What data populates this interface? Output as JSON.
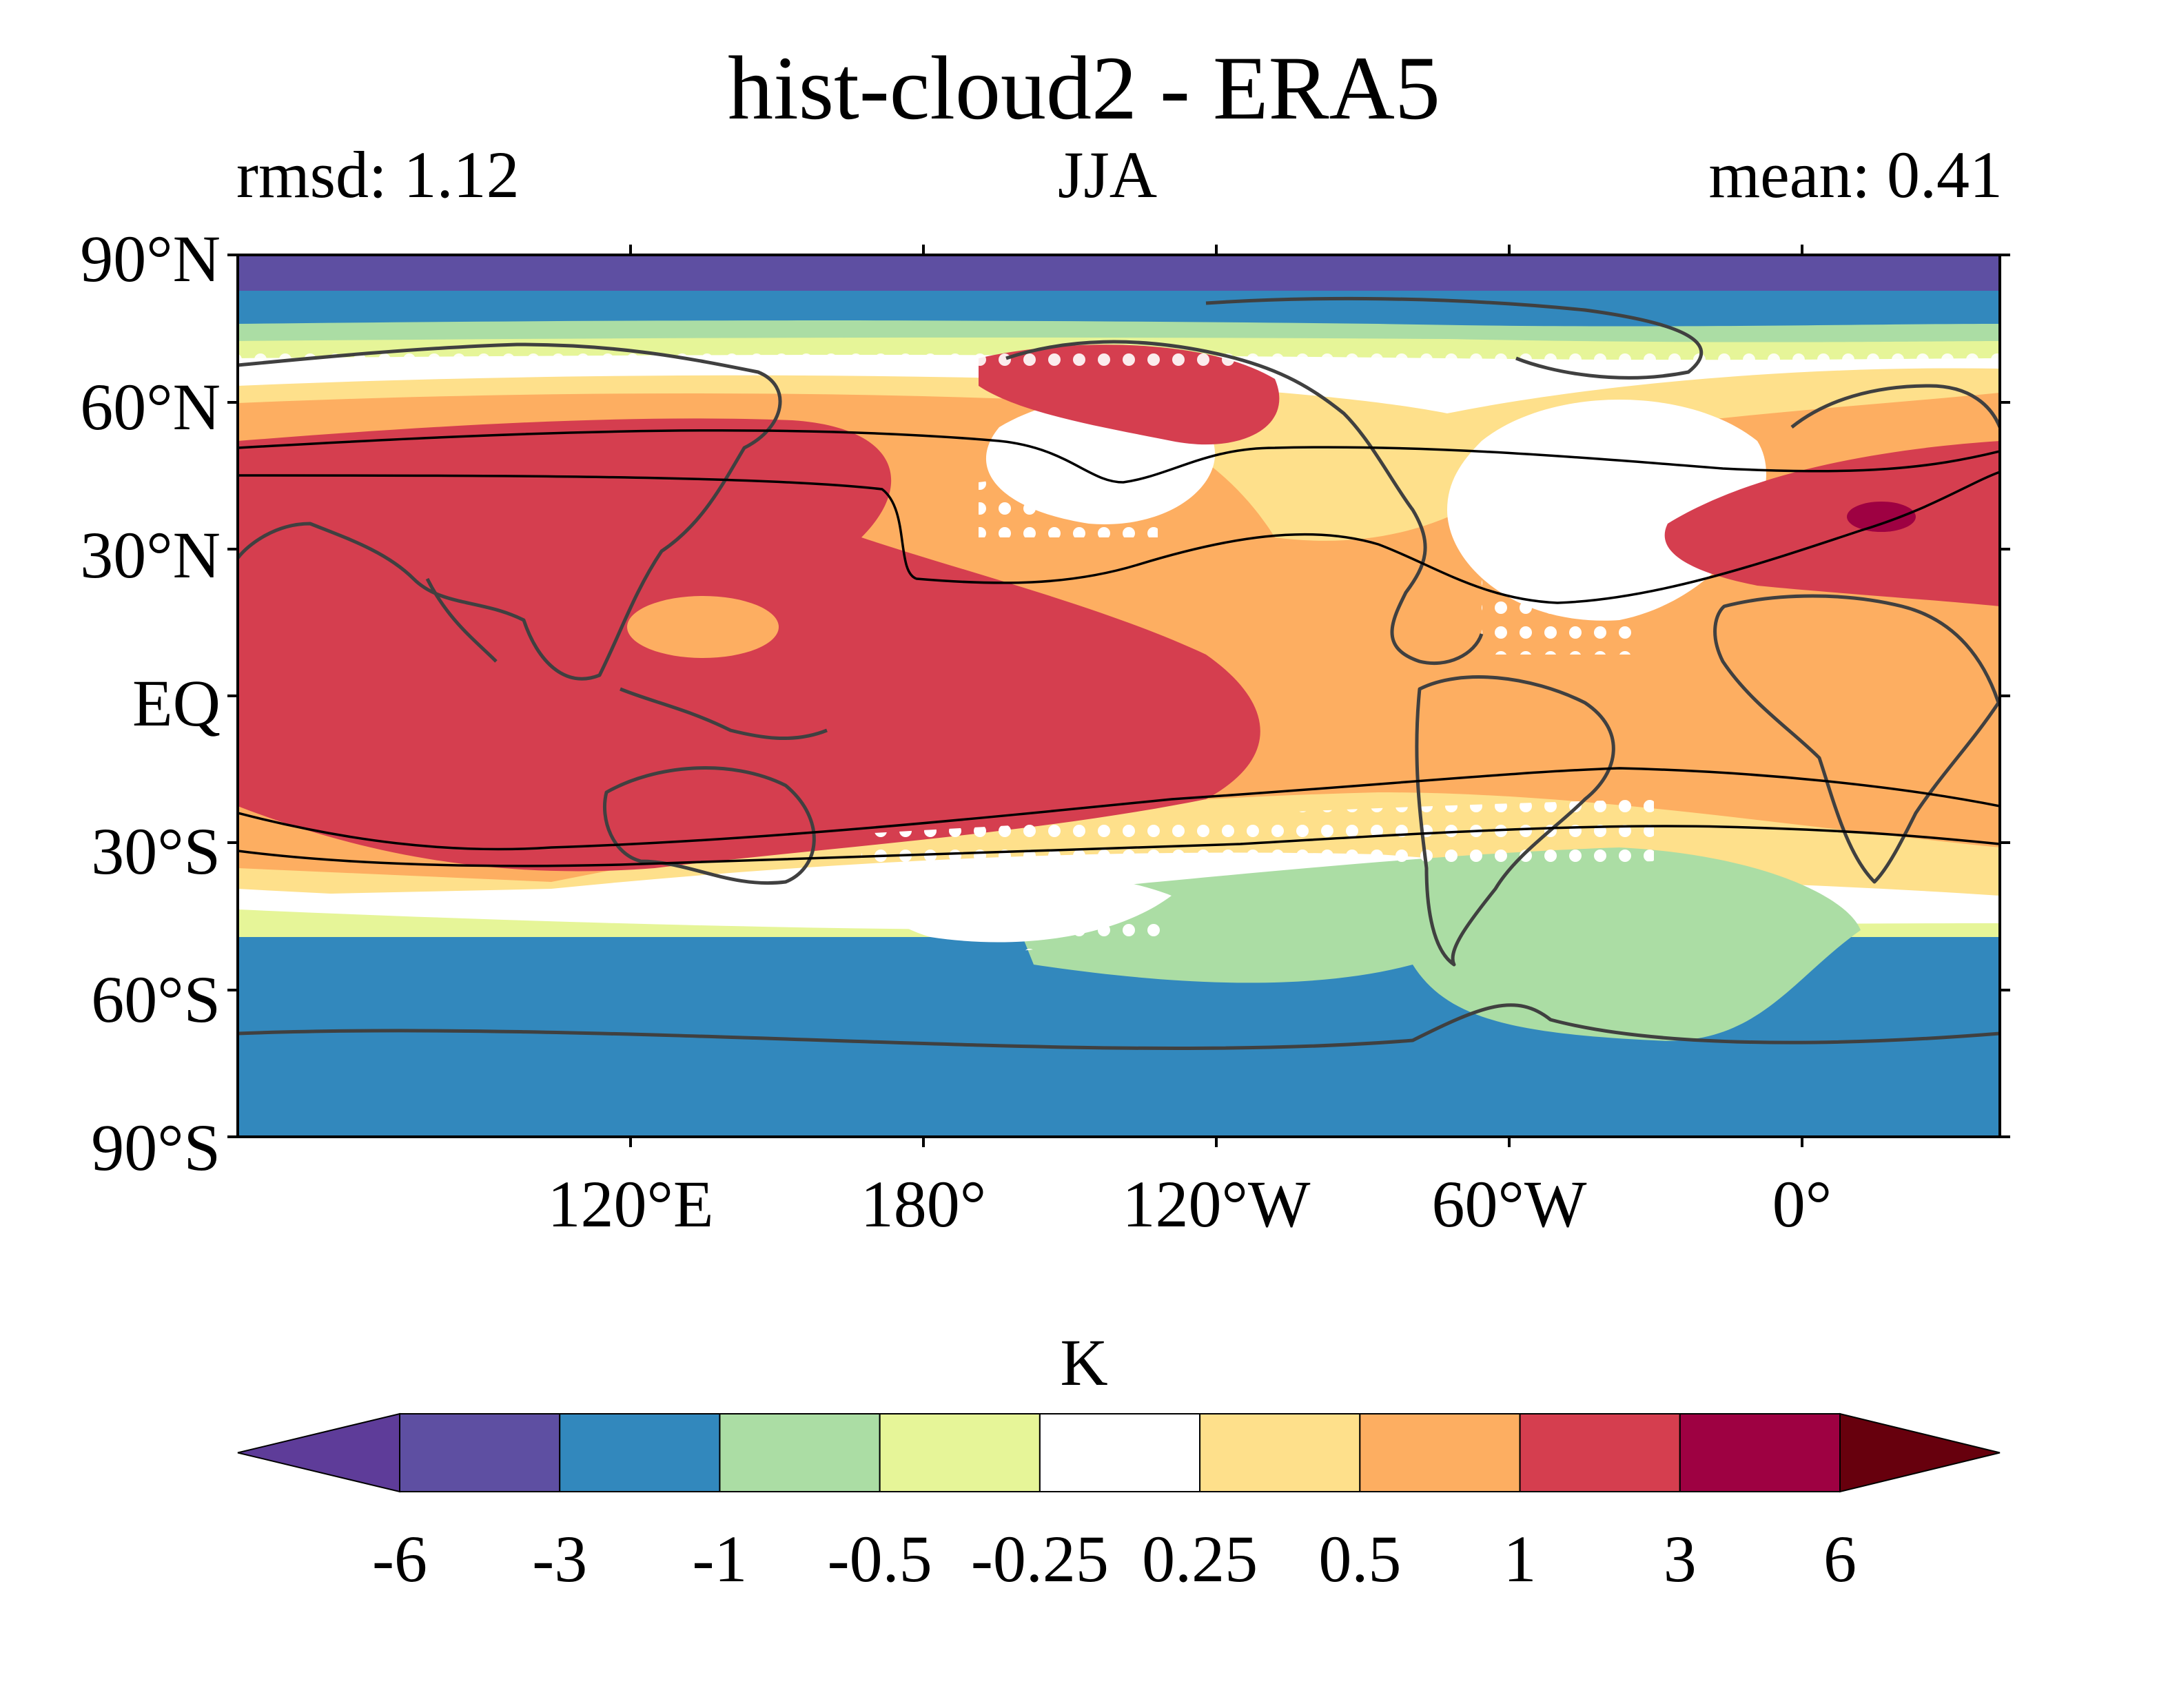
{
  "map": {
    "title": "hist-cloud2 - ERA5",
    "left_title": "rmsd: 1.12",
    "center_title": "JJA",
    "right_title": "mean: 0.41",
    "lat_ticks": [
      "90°N",
      "60°N",
      "30°N",
      "EQ",
      "30°S",
      "60°S",
      "90°S"
    ],
    "lon_ticks": [
      "120°E",
      "180°",
      "120°W",
      "60°W",
      "0°"
    ],
    "lon_range": [
      40,
      400
    ],
    "lat_range": [
      -90,
      90
    ],
    "projection": "PlateCarree, central longitude 220°",
    "variable_units": "K",
    "stippling": "white dots",
    "overlay_lines": "black contour lines (jet boundaries)",
    "coastlines": "#404040"
  },
  "colorbar": {
    "label": "K",
    "extend": "both",
    "tick_labels": [
      "-6",
      "-3",
      "-1",
      "-0.5",
      "-0.25",
      "0.25",
      "0.5",
      "1",
      "3",
      "6"
    ],
    "levels": [
      -6,
      -3,
      -1,
      -0.5,
      -0.25,
      0.25,
      0.5,
      1,
      3,
      6
    ],
    "colors": [
      "#5e3c99",
      "#5e4fa2",
      "#3288bd",
      "#abdda4",
      "#e6f598",
      "#ffffff",
      "#fee08b",
      "#fdae61",
      "#d53e4f",
      "#9e0142",
      "#67000d"
    ]
  }
}
